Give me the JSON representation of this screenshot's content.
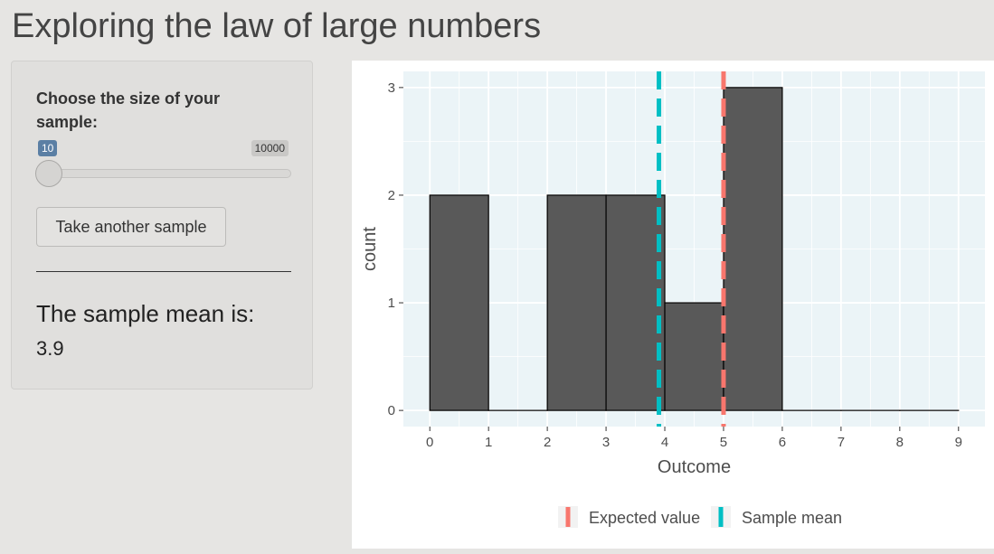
{
  "page": {
    "title": "Exploring the law of large numbers"
  },
  "sidebar": {
    "slider": {
      "label": "Choose the size of your sample:",
      "min_label": "10",
      "max_label": "10000",
      "min": 10,
      "max": 10000,
      "value": 10
    },
    "button_label": "Take another sample",
    "mean_label": "The sample mean is:",
    "mean_value": "3.9"
  },
  "chart_data": {
    "type": "bar",
    "subtype": "histogram",
    "bins": [
      {
        "x0": 0,
        "x1": 1,
        "count": 2
      },
      {
        "x0": 1,
        "x1": 2,
        "count": 0
      },
      {
        "x0": 2,
        "x1": 3,
        "count": 2
      },
      {
        "x0": 3,
        "x1": 4,
        "count": 2
      },
      {
        "x0": 4,
        "x1": 5,
        "count": 1
      },
      {
        "x0": 5,
        "x1": 6,
        "count": 3
      },
      {
        "x0": 6,
        "x1": 7,
        "count": 0
      },
      {
        "x0": 7,
        "x1": 8,
        "count": 0
      },
      {
        "x0": 8,
        "x1": 9,
        "count": 0
      }
    ],
    "xlabel": "Outcome",
    "ylabel": "count",
    "xticks": [
      0,
      1,
      2,
      3,
      4,
      5,
      6,
      7,
      8,
      9
    ],
    "yticks": [
      0,
      1,
      2,
      3
    ],
    "xlim": [
      -0.45,
      9.45
    ],
    "ylim": [
      -0.15,
      3.15
    ],
    "grid": true,
    "bar_color": "#595959",
    "panel_background": "#ebf4f7",
    "vlines": [
      {
        "name": "Expected value",
        "x": 5,
        "color": "#f8766d"
      },
      {
        "name": "Sample mean",
        "x": 3.9,
        "color": "#00bfc4"
      }
    ],
    "legend": {
      "position": "bottom",
      "entries": [
        {
          "label": "Expected value",
          "color": "#f8766d"
        },
        {
          "label": "Sample mean",
          "color": "#00bfc4"
        }
      ]
    }
  }
}
